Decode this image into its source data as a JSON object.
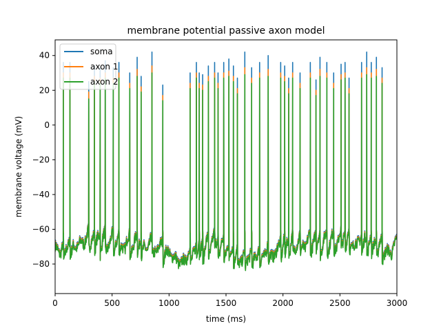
{
  "chart_data": {
    "type": "line",
    "title": "membrane potential passive axon model",
    "xlabel": "time (ms)",
    "ylabel": "membrane voltage (mV)",
    "xlim": [
      0,
      3000
    ],
    "ylim": [
      -97,
      49
    ],
    "xticks": [
      0,
      500,
      1000,
      1500,
      2000,
      2500,
      3000
    ],
    "yticks": [
      -80,
      -60,
      -40,
      -20,
      0,
      20,
      40
    ],
    "grid": false,
    "legend_position": "top-left",
    "spike_times": [
      72,
      130,
      295,
      345,
      395,
      440,
      510,
      560,
      655,
      720,
      755,
      850,
      945,
      1185,
      1240,
      1265,
      1295,
      1345,
      1400,
      1430,
      1480,
      1525,
      1565,
      1600,
      1665,
      1725,
      1795,
      1870,
      1980,
      2015,
      2050,
      2085,
      2150,
      2240,
      2290,
      2325,
      2385,
      2445,
      2510,
      2545,
      2580,
      2690,
      2735,
      2775,
      2820,
      2870
    ],
    "series": [
      {
        "name": "soma",
        "color": "#1f77b4",
        "spike_peaks": [
          36,
          36,
          25,
          34,
          33,
          37,
          33,
          36,
          30,
          39,
          28,
          42,
          23,
          30,
          36,
          30,
          29,
          34,
          36,
          30,
          36,
          38,
          34,
          27,
          42,
          33,
          36,
          40,
          36,
          34,
          27,
          36,
          30,
          36,
          26,
          39,
          36,
          30,
          35,
          36,
          27,
          36,
          42,
          36,
          39,
          33
        ]
      },
      {
        "name": "axon 1",
        "color": "#ff7f0e",
        "spike_peaks": [
          30,
          30,
          19,
          28,
          27,
          30,
          27,
          30,
          24,
          32,
          22,
          34,
          17,
          24,
          30,
          24,
          23,
          28,
          30,
          24,
          30,
          31,
          28,
          21,
          33,
          27,
          30,
          32,
          30,
          28,
          21,
          30,
          24,
          30,
          20,
          32,
          30,
          24,
          29,
          30,
          21,
          30,
          33,
          30,
          32,
          27
        ]
      },
      {
        "name": "axon 2",
        "color": "#2ca02c",
        "spike_peaks": [
          27,
          27,
          15,
          25,
          24,
          27,
          24,
          27,
          21,
          28,
          19,
          30,
          14,
          21,
          27,
          21,
          20,
          25,
          27,
          21,
          27,
          28,
          25,
          18,
          29,
          24,
          27,
          28,
          27,
          25,
          18,
          27,
          21,
          27,
          17,
          28,
          27,
          21,
          26,
          27,
          18,
          27,
          29,
          27,
          28,
          24
        ]
      }
    ],
    "baseline_valleys": [
      {
        "t": 0,
        "v": -80
      },
      {
        "t": 45,
        "v": -86
      },
      {
        "t": 230,
        "v": -78
      },
      {
        "t": 870,
        "v": -82
      },
      {
        "t": 1000,
        "v": -84
      },
      {
        "t": 1100,
        "v": -90
      },
      {
        "t": 1390,
        "v": -80
      },
      {
        "t": 1640,
        "v": -90
      },
      {
        "t": 2170,
        "v": -80
      },
      {
        "t": 2620,
        "v": -79
      },
      {
        "t": 2950,
        "v": -84
      },
      {
        "t": 3000,
        "v": -76
      }
    ]
  }
}
